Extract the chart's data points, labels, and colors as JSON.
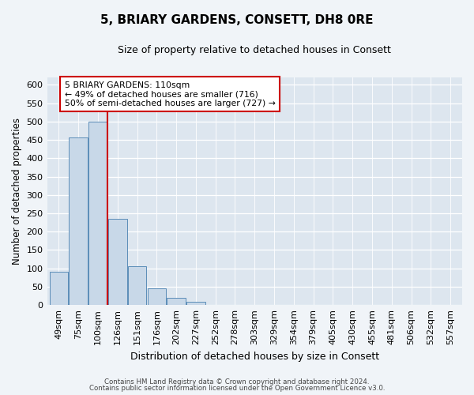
{
  "title": "5, BRIARY GARDENS, CONSETT, DH8 0RE",
  "subtitle": "Size of property relative to detached houses in Consett",
  "xlabel": "Distribution of detached houses by size in Consett",
  "ylabel": "Number of detached properties",
  "bar_labels": [
    "49sqm",
    "75sqm",
    "100sqm",
    "126sqm",
    "151sqm",
    "176sqm",
    "202sqm",
    "227sqm",
    "252sqm",
    "278sqm",
    "303sqm",
    "329sqm",
    "354sqm",
    "379sqm",
    "405sqm",
    "430sqm",
    "455sqm",
    "481sqm",
    "506sqm",
    "532sqm",
    "557sqm"
  ],
  "bar_values": [
    90,
    456,
    500,
    235,
    105,
    45,
    20,
    10,
    1,
    1,
    0,
    0,
    0,
    0,
    0,
    0,
    0,
    0,
    0,
    0,
    1
  ],
  "bar_color": "#c8d8e8",
  "bar_edge_color": "#5b8db8",
  "highlight_line_color": "#cc0000",
  "ylim": [
    0,
    620
  ],
  "yticks": [
    0,
    50,
    100,
    150,
    200,
    250,
    300,
    350,
    400,
    450,
    500,
    550,
    600
  ],
  "annotation_line1": "5 BRIARY GARDENS: 110sqm",
  "annotation_line2": "← 49% of detached houses are smaller (716)",
  "annotation_line3": "50% of semi-detached houses are larger (727) →",
  "annotation_box_color": "#ffffff",
  "annotation_box_edge": "#cc0000",
  "footer_line1": "Contains HM Land Registry data © Crown copyright and database right 2024.",
  "footer_line2": "Contains public sector information licensed under the Open Government Licence v3.0.",
  "background_color": "#f0f4f8",
  "plot_background_color": "#dde6ef"
}
